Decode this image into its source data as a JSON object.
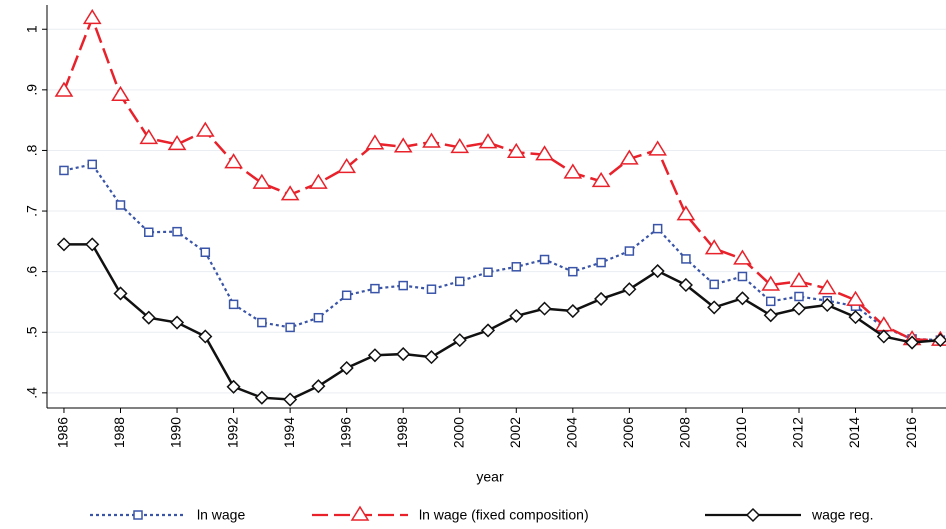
{
  "chart_data": {
    "type": "line",
    "x_label": "year",
    "x": [
      1986,
      1987,
      1988,
      1989,
      1990,
      1991,
      1992,
      1993,
      1994,
      1995,
      1996,
      1997,
      1998,
      1999,
      2000,
      2001,
      2002,
      2003,
      2004,
      2005,
      2006,
      2007,
      2008,
      2009,
      2010,
      2011,
      2012,
      2013,
      2014,
      2015,
      2016,
      2017
    ],
    "series": [
      {
        "name": "ln wage",
        "color": "#3a55a8",
        "marker": "square",
        "dash": "dot",
        "values": [
          0.767,
          0.777,
          0.71,
          0.665,
          0.666,
          0.632,
          0.546,
          0.516,
          0.508,
          0.524,
          0.561,
          0.572,
          0.577,
          0.571,
          0.584,
          0.599,
          0.608,
          0.62,
          0.6,
          0.615,
          0.634,
          0.671,
          0.621,
          0.579,
          0.592,
          0.551,
          0.559,
          0.552,
          0.543,
          0.508,
          0.489,
          0.487
        ]
      },
      {
        "name": "ln wage (fixed composition)",
        "color": "#e8212a",
        "marker": "triangle",
        "dash": "long",
        "values": [
          0.898,
          1.018,
          0.891,
          0.82,
          0.81,
          0.832,
          0.78,
          0.746,
          0.727,
          0.746,
          0.772,
          0.811,
          0.806,
          0.814,
          0.805,
          0.813,
          0.797,
          0.793,
          0.763,
          0.749,
          0.786,
          0.801,
          0.694,
          0.638,
          0.621,
          0.578,
          0.584,
          0.572,
          0.553,
          0.511,
          0.488,
          0.487
        ]
      },
      {
        "name": "wage reg.",
        "color": "#111111",
        "marker": "diamond",
        "dash": "solid",
        "values": [
          0.645,
          0.645,
          0.564,
          0.524,
          0.516,
          0.493,
          0.41,
          0.392,
          0.389,
          0.411,
          0.441,
          0.462,
          0.464,
          0.459,
          0.487,
          0.503,
          0.527,
          0.539,
          0.535,
          0.555,
          0.571,
          0.601,
          0.578,
          0.541,
          0.556,
          0.528,
          0.539,
          0.545,
          0.525,
          0.493,
          0.483,
          0.487
        ]
      }
    ],
    "xlim": [
      1985.4,
      2017.2
    ],
    "xticks": [
      1986,
      1988,
      1990,
      1992,
      1994,
      1996,
      1998,
      2000,
      2002,
      2004,
      2006,
      2008,
      2010,
      2012,
      2014,
      2016
    ],
    "ylim": [
      0.375,
      1.04
    ],
    "yticks": [
      {
        "value": 0.4,
        "label": ".4"
      },
      {
        "value": 0.5,
        "label": ".5"
      },
      {
        "value": 0.6,
        "label": ".6"
      },
      {
        "value": 0.7,
        "label": ".7"
      },
      {
        "value": 0.8,
        "label": ".8"
      },
      {
        "value": 0.9,
        "label": ".9"
      },
      1
    ],
    "grid": true,
    "legend": "bottom"
  }
}
